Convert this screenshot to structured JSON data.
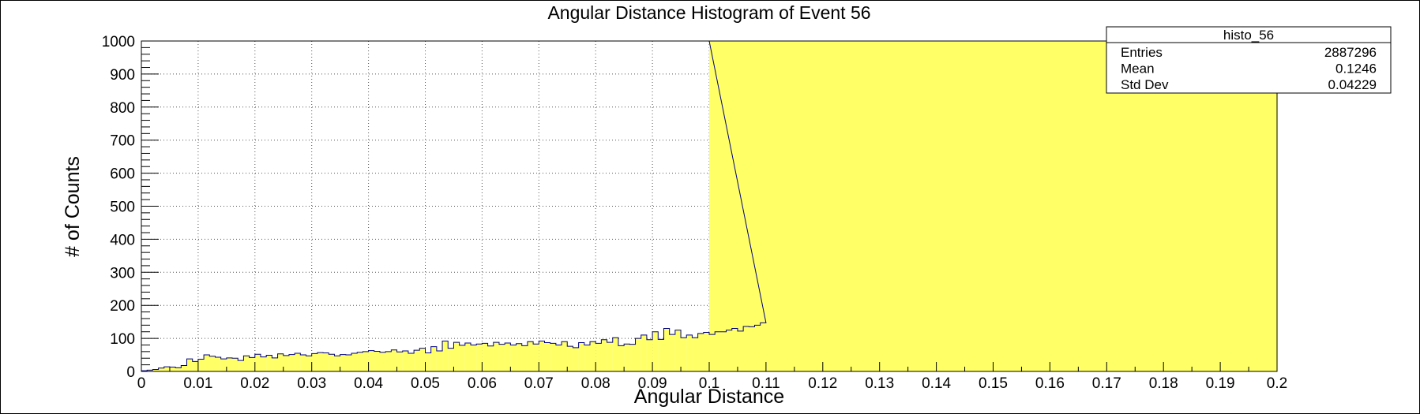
{
  "chart_data": {
    "type": "histogram",
    "title": "Angular Distance Histogram of Event 56",
    "xlabel": "Angular Distance",
    "ylabel": "# of Counts",
    "xlim": [
      0,
      0.2
    ],
    "ylim": [
      0,
      1000
    ],
    "x_ticks": [
      "0",
      "0.01",
      "0.02",
      "0.03",
      "0.04",
      "0.05",
      "0.06",
      "0.07",
      "0.08",
      "0.09",
      "0.1",
      "0.11",
      "0.12",
      "0.13",
      "0.14",
      "0.15",
      "0.16",
      "0.17",
      "0.18",
      "0.19",
      "0.2"
    ],
    "y_ticks": [
      "0",
      "100",
      "200",
      "300",
      "400",
      "500",
      "600",
      "700",
      "800",
      "900",
      "1000"
    ],
    "grid": true,
    "fill_color": "#ffff66",
    "line_color": "#000080",
    "bin_width": 0.001,
    "bin_start": 0.0,
    "counts_low": [
      2,
      4,
      6,
      10,
      14,
      13,
      11,
      18,
      38,
      30,
      37,
      50,
      46,
      43,
      38,
      41,
      40,
      33,
      47,
      42,
      52,
      44,
      49,
      41,
      53,
      48,
      51,
      55,
      50,
      47,
      54,
      57,
      56,
      52,
      47,
      51,
      50,
      55,
      58,
      60,
      63,
      61,
      58,
      60,
      65,
      59,
      62,
      55,
      64,
      70,
      56,
      75,
      62,
      92,
      70,
      88,
      79,
      86,
      80,
      83,
      85,
      77,
      88,
      82,
      86,
      80,
      84,
      78,
      90,
      83,
      92,
      87,
      85,
      80,
      90,
      76,
      72,
      87,
      80,
      90,
      85,
      96,
      88,
      102,
      78,
      83,
      82,
      100,
      110,
      96,
      120,
      97,
      130,
      112,
      125,
      102,
      110,
      102,
      115,
      118,
      112,
      120,
      120,
      125,
      130,
      122,
      136,
      135,
      140,
      147
    ],
    "overflow_value": 1000,
    "overflow_range": [
      0.1,
      0.2
    ],
    "stats": {
      "name": "histo_56",
      "rows": [
        {
          "label": "Entries",
          "value": "2887296"
        },
        {
          "label": "Mean",
          "value": "0.1246"
        },
        {
          "label": "Std Dev",
          "value": "0.04229"
        }
      ]
    }
  }
}
